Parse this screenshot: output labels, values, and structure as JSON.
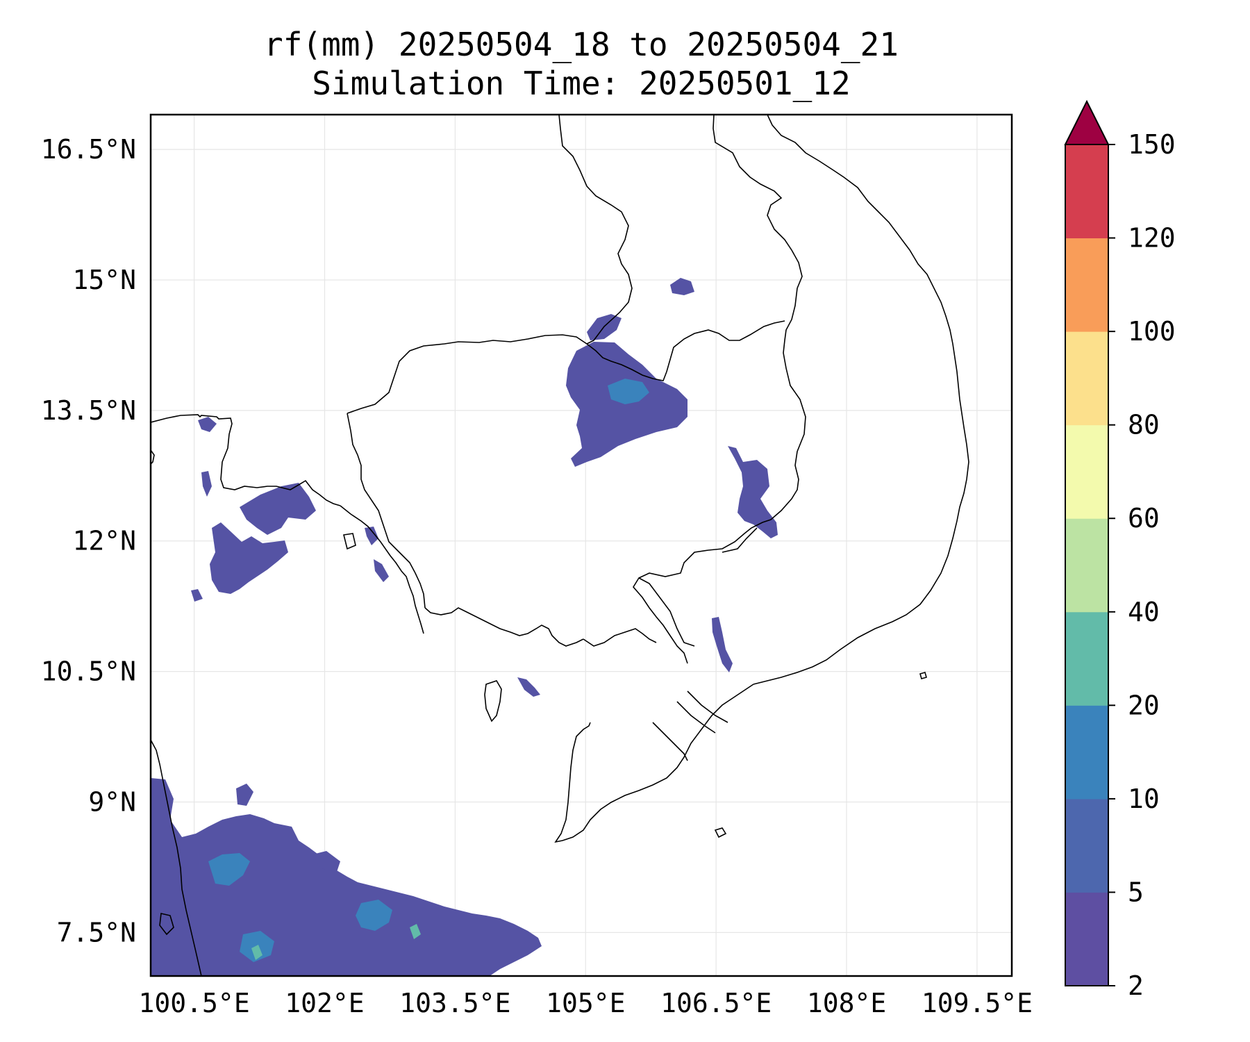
{
  "title": {
    "line1": "rf(mm) 20250504_18 to 20250504_21",
    "line2": "Simulation Time: 20250501_12"
  },
  "map": {
    "lon_range": [
      100.0,
      109.9
    ],
    "lat_range": [
      7.0,
      16.9
    ],
    "lon_ticks": [
      100.5,
      102.0,
      103.5,
      105.0,
      106.5,
      108.0,
      109.5
    ],
    "lat_ticks": [
      7.5,
      9.0,
      10.5,
      12.0,
      13.5,
      15.0,
      16.5
    ],
    "lon_labels": [
      "100.5°E",
      "102°E",
      "103.5°E",
      "105°E",
      "106.5°E",
      "108°E",
      "109.5°E"
    ],
    "lat_labels": [
      "7.5°N",
      "9°N",
      "10.5°N",
      "12°N",
      "13.5°N",
      "15°N",
      "16.5°N"
    ],
    "gridlines": true
  },
  "colorbar": {
    "levels": [
      2,
      5,
      10,
      20,
      40,
      60,
      80,
      100,
      120,
      150
    ],
    "labels": [
      "2",
      "5",
      "10",
      "20",
      "40",
      "60",
      "80",
      "100",
      "120",
      "150"
    ],
    "colors": [
      "#5e4fa2",
      "#4d67ae",
      "#3a83bc",
      "#62bba9",
      "#bce3a3",
      "#f3faad",
      "#fce08c",
      "#f99d59",
      "#d53e4f"
    ],
    "extend_color": "#9e0142",
    "extend": "max"
  },
  "precip_colors": {
    "low": "#5553a4",
    "mid": "#3a83bc",
    "high": "#62bba9"
  }
}
